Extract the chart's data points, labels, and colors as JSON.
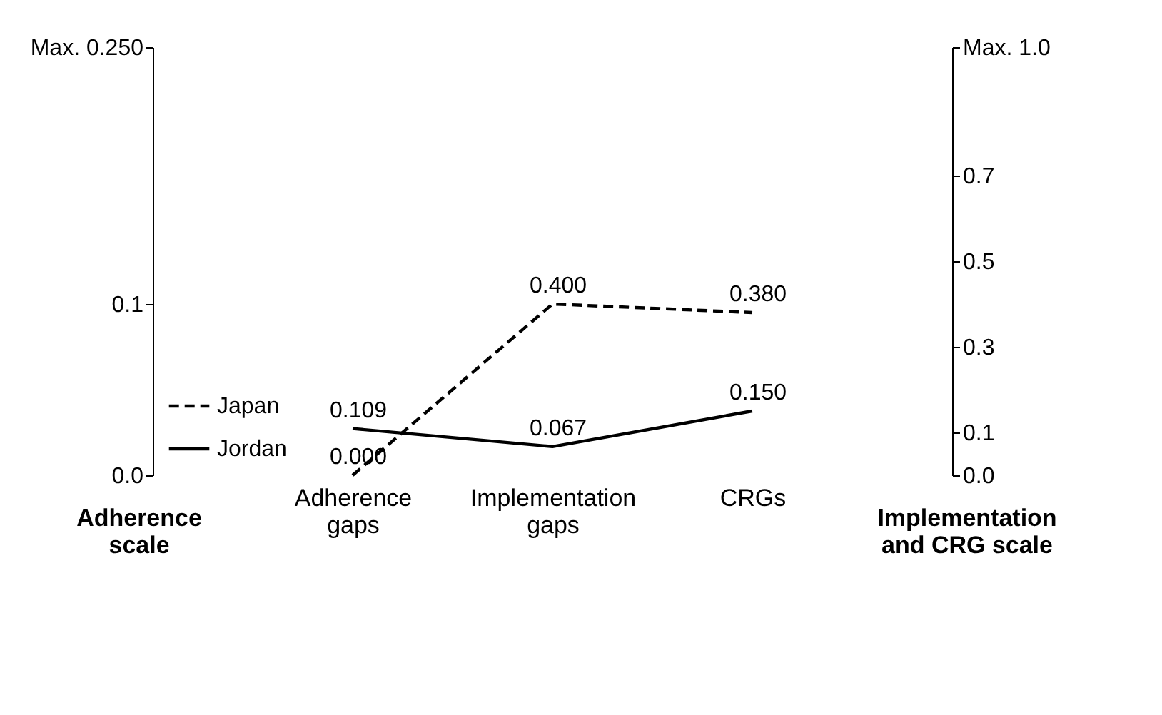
{
  "chart_data": {
    "type": "line",
    "categories": [
      "Adherence gaps",
      "Implementation gaps",
      "CRGs"
    ],
    "ylabel": "Adherence scale",
    "y2label": "Implementation and CRG scale",
    "ylim": [
      0,
      0.25
    ],
    "yticks": [
      {
        "value": 0,
        "label": "0.0"
      },
      {
        "value": 0.1,
        "label": "0.1"
      },
      {
        "value": 0.25,
        "label": "Max. 0.250"
      }
    ],
    "y2lim": [
      0,
      1
    ],
    "y2ticks": [
      {
        "value": 0,
        "label": "0.0"
      },
      {
        "value": 0.1,
        "label": "0.1"
      },
      {
        "value": 0.3,
        "label": "0.3"
      },
      {
        "value": 0.5,
        "label": "0.5"
      },
      {
        "value": 0.7,
        "label": "0.7"
      },
      {
        "value": 1,
        "label": "Max. 1.0"
      }
    ],
    "series": [
      {
        "name": "Japan",
        "color": "#000000",
        "axis": "y2",
        "line_style": "dashed",
        "values": [
          0,
          0.4,
          0.38
        ],
        "value_labels": [
          "0.000",
          "0.400",
          "0.380"
        ]
      },
      {
        "name": "Jordan",
        "color": "#000000",
        "axis": "y2",
        "line_style": "solid",
        "values": [
          0.109,
          0.067,
          0.15
        ],
        "value_labels": [
          "0.109",
          "0.067",
          "0.150"
        ]
      }
    ],
    "legend": "bottom left",
    "grid": false
  }
}
